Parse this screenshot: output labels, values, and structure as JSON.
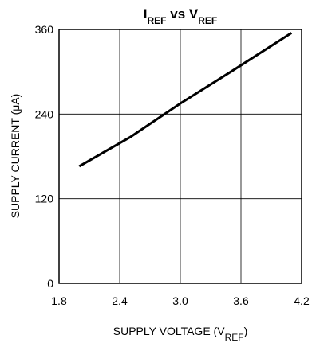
{
  "chart_data": {
    "type": "line",
    "title": {
      "parts": [
        {
          "text": "I",
          "sub": false
        },
        {
          "text": "REF",
          "sub": true
        },
        {
          "text": " vs V",
          "sub": false
        },
        {
          "text": "REF",
          "sub": true
        }
      ]
    },
    "xlabel": {
      "parts": [
        {
          "text": "SUPPLY VOLTAGE (V",
          "sub": false
        },
        {
          "text": "REF",
          "sub": true
        },
        {
          "text": ")",
          "sub": false
        }
      ]
    },
    "ylabel": "SUPPLY CURRENT (μA)",
    "xlim": [
      1.8,
      4.2
    ],
    "ylim": [
      0,
      360
    ],
    "xticks": [
      {
        "value": 1.8,
        "label": "1.8"
      },
      {
        "value": 2.4,
        "label": "2.4"
      },
      {
        "value": 3.0,
        "label": "3.0"
      },
      {
        "value": 3.6,
        "label": "3.6"
      },
      {
        "value": 4.2,
        "label": "4.2"
      }
    ],
    "yticks": [
      {
        "value": 0,
        "label": "0"
      },
      {
        "value": 120,
        "label": "120"
      },
      {
        "value": 240,
        "label": "240"
      },
      {
        "value": 360,
        "label": "360"
      }
    ],
    "grid": true,
    "series": [
      {
        "x": [
          2.0,
          2.5,
          3.0,
          3.5,
          4.1
        ],
        "y": [
          166,
          207,
          255,
          300,
          355
        ],
        "color": "#000000"
      }
    ]
  }
}
